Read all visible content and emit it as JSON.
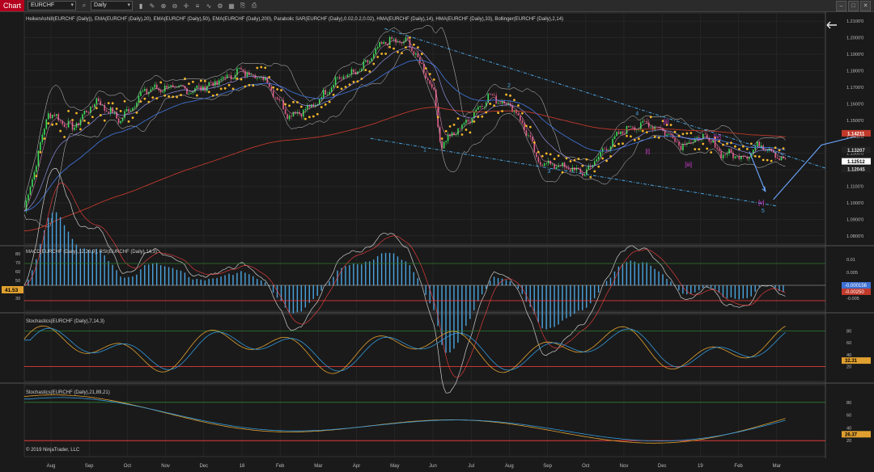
{
  "toolbar": {
    "app_label": "Chart",
    "instrument": "EURCHF",
    "period": "Daily"
  },
  "panels": {
    "price_title": "HeikenAshi8(EURCHF (Daily)), EMA(EURCHF (Daily),20), EMA(EURCHF (Daily),50), EMA(EURCHF (Daily),200), Parabolic SAR(EURCHF (Daily),0.02,0.2,0.02), HMA(EURCHF (Daily),14), HMA(EURCHF (Daily),33), Bollinger(EURCHF (Daily),2,14)",
    "macd_title": "MACD(EURCHF (Daily),12,26,9), RSI(EURCHF (Daily),14,3)",
    "stoch1_title": "Stochastics(EURCHF (Daily),7,14,3)",
    "stoch2_title": "Stochastics(EURCHF (Daily),21,89,21)",
    "copyright": "© 2019 NinjaTrader, LLC"
  },
  "colors": {
    "background": "#1a1a1a",
    "grid": "#2c2c2c",
    "sar": "#f2b52a",
    "ema200": "#c0392b",
    "ema50": "#3d6fd1",
    "bollinger": "#cfcfcf",
    "wave_blue": "#4aa3df",
    "wave_magenta": "#e040e0",
    "arrow": "#6aa7ff",
    "stoch_k": "#e0a030",
    "stoch_d": "#3399dd",
    "level_red": "#ff4040",
    "level_green": "#2e7d32"
  },
  "chart_data": {
    "type": "candlestick",
    "instrument": "EURCHF",
    "timeframe": "Daily",
    "x_labels": [
      "Aug",
      "Sep",
      "Oct",
      "Nov",
      "Dec",
      "18",
      "Feb",
      "Mar",
      "Apr",
      "May",
      "Jun",
      "Jul",
      "Aug",
      "Sep",
      "Oct",
      "Nov",
      "Dec",
      "19",
      "Feb",
      "Mar"
    ],
    "price_axis": [
      "1.2100'0",
      "1.2000'0",
      "1.1900'0",
      "1.1800'0",
      "1.1700'0",
      "1.1600'0",
      "1.1500'0",
      "1.1400'0",
      "1.1300'0",
      "1.1200'0",
      "1.1100'0",
      "1.1000'0",
      "1.0900'0",
      "1.0800'0"
    ],
    "ylim": [
      1.075,
      1.215
    ],
    "price_path": [
      [
        0,
        1.095
      ],
      [
        0.03,
        1.155
      ],
      [
        0.06,
        1.145
      ],
      [
        0.09,
        1.162
      ],
      [
        0.12,
        1.15
      ],
      [
        0.15,
        1.168
      ],
      [
        0.18,
        1.17
      ],
      [
        0.21,
        1.168
      ],
      [
        0.24,
        1.173
      ],
      [
        0.27,
        1.18
      ],
      [
        0.3,
        1.175
      ],
      [
        0.33,
        1.153
      ],
      [
        0.36,
        1.158
      ],
      [
        0.39,
        1.175
      ],
      [
        0.42,
        1.18
      ],
      [
        0.45,
        1.198
      ],
      [
        0.48,
        1.197
      ],
      [
        0.51,
        1.17
      ],
      [
        0.52,
        1.135
      ],
      [
        0.55,
        1.148
      ],
      [
        0.58,
        1.165
      ],
      [
        0.61,
        1.158
      ],
      [
        0.63,
        1.14
      ],
      [
        0.64,
        1.125
      ],
      [
        0.67,
        1.122
      ],
      [
        0.7,
        1.118
      ],
      [
        0.72,
        1.13
      ],
      [
        0.75,
        1.145
      ],
      [
        0.78,
        1.148
      ],
      [
        0.8,
        1.143
      ],
      [
        0.82,
        1.135
      ],
      [
        0.85,
        1.14
      ],
      [
        0.87,
        1.13
      ],
      [
        0.9,
        1.128
      ],
      [
        0.92,
        1.136
      ],
      [
        0.95,
        1.125
      ]
    ],
    "price_labels": [
      {
        "text": "1.14211",
        "value": 1.14211,
        "bg": "#c0392b",
        "fg": "#ffffff"
      },
      {
        "text": "1.13207",
        "value": 1.13207,
        "bg": "#222222",
        "fg": "#dddddd"
      },
      {
        "text": "1.12512",
        "value": 1.12512,
        "bg": "#ffffff",
        "fg": "#000000"
      },
      {
        "text": "1.12045",
        "value": 1.12045,
        "bg": "#222222",
        "fg": "#dddddd"
      }
    ],
    "wave_labels": [
      {
        "text": "1",
        "x": 0.5,
        "y": 1.131,
        "color": "#4aa3df"
      },
      {
        "text": "2",
        "x": 0.605,
        "y": 1.17,
        "color": "#4aa3df"
      },
      {
        "text": "3",
        "x": 0.655,
        "y": 1.118,
        "color": "#4aa3df"
      },
      {
        "text": "4",
        "x": 0.765,
        "y": 1.153,
        "color": "#4aa3df"
      },
      {
        "text": "5",
        "x": 0.922,
        "y": 1.094,
        "color": "#4aa3df"
      },
      {
        "text": "[i]",
        "x": 0.778,
        "y": 1.13,
        "color": "#e040e0"
      },
      {
        "text": "[ii]",
        "x": 0.801,
        "y": 1.148,
        "color": "#e040e0"
      },
      {
        "text": "[iii]",
        "x": 0.829,
        "y": 1.122,
        "color": "#e040e0"
      },
      {
        "text": "[iv]",
        "x": 0.865,
        "y": 1.139,
        "color": "#e040e0"
      },
      {
        "text": "[v]",
        "x": 0.92,
        "y": 1.099,
        "color": "#e040e0"
      }
    ],
    "macd": {
      "right_axis": [
        "0.01",
        "0.005",
        "0",
        "-0.005"
      ],
      "left_axis": [
        "80",
        "70",
        "60",
        "50",
        "40",
        "30"
      ],
      "labels": [
        {
          "text": "-0.000156",
          "bg": "#3d6fd1",
          "fg": "#ffffff"
        },
        {
          "text": "-0.00250",
          "bg": "#c0392b",
          "fg": "#ffffff"
        }
      ],
      "rsi_label": "41.53"
    },
    "stoch1": {
      "axis": [
        "80",
        "60",
        "40",
        "20"
      ],
      "label": "32.31",
      "label_bg": "#e0a030"
    },
    "stoch2": {
      "axis": [
        "80",
        "60",
        "40",
        "20"
      ],
      "label": "26.37",
      "label_bg": "#e0a030"
    }
  }
}
